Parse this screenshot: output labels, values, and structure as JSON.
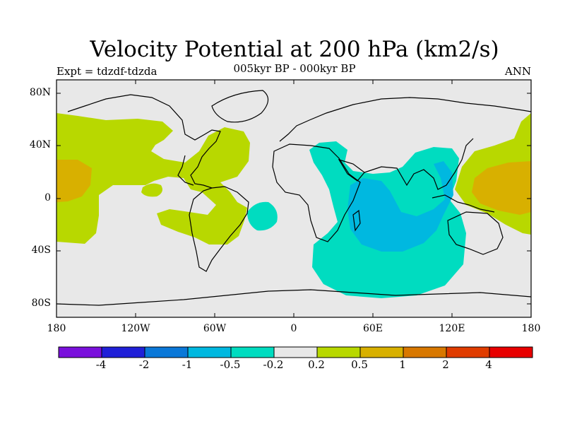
{
  "title": "Velocity Potential at 200 hPa (km2/s)",
  "subtitle": "005kyr BP - 000kyr BP",
  "left_label": "Expt = tdzdf-tdzda",
  "right_label": "ANN",
  "axes": {
    "y_ticks": [
      "80N",
      "40N",
      "0",
      "40S",
      "80S"
    ],
    "x_ticks": [
      "180",
      "120W",
      "60W",
      "0",
      "60E",
      "120E",
      "180"
    ]
  },
  "colorbar": {
    "colors": [
      "#7a10dc",
      "#2020d8",
      "#0a78d8",
      "#00b8e0",
      "#00dcc0",
      "#e8e8e8",
      "#b8d800",
      "#d8b000",
      "#d87800",
      "#e03c00",
      "#e80000"
    ],
    "labels": [
      "-4",
      "-2",
      "-1",
      "-0.5",
      "-0.2",
      "0.2",
      "0.5",
      "1",
      "2",
      "4"
    ]
  },
  "map": {
    "ocean": "#e8e8e8",
    "lon_range": [
      -180,
      180
    ],
    "lat_range": [
      -90,
      90
    ]
  }
}
